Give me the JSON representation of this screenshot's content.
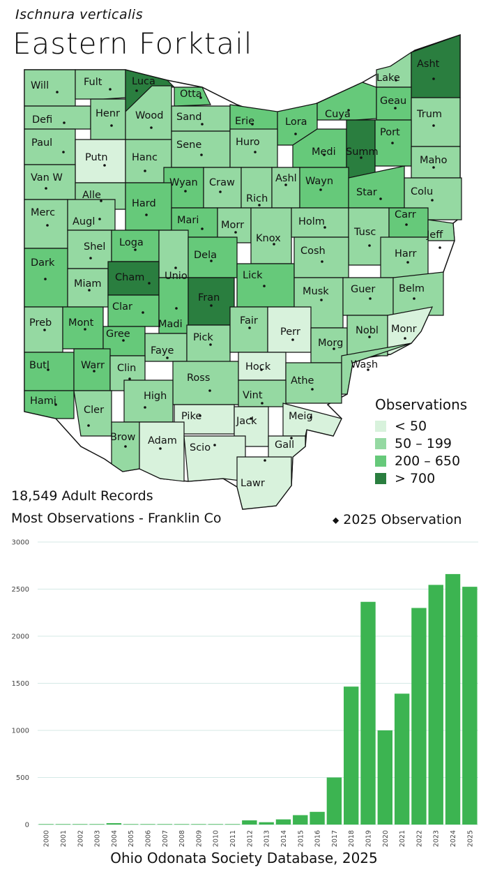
{
  "header": {
    "scientific_name": "Ischnura verticalis",
    "common_name": "Eastern Forktail"
  },
  "colors": {
    "lt50": "#d8f2dc",
    "c50_199": "#95d9a2",
    "c200_650": "#66c97a",
    "gt700": "#2a7e3f",
    "bar": "#3cb451",
    "grid": "#d4e9e6"
  },
  "map": {
    "counties": [
      {
        "label": "Will",
        "cls": "c50_199"
      },
      {
        "label": "Fult",
        "cls": "c50_199"
      },
      {
        "label": "Luca",
        "cls": "gt700"
      },
      {
        "label": "Otta",
        "cls": "c200_650"
      },
      {
        "label": "Lake",
        "cls": "c50_199"
      },
      {
        "label": "Asht",
        "cls": "gt700"
      },
      {
        "label": "Defi",
        "cls": "c50_199"
      },
      {
        "label": "Henr",
        "cls": "c50_199"
      },
      {
        "label": "Wood",
        "cls": "c50_199"
      },
      {
        "label": "Sand",
        "cls": "c50_199"
      },
      {
        "label": "Erie",
        "cls": "c200_650"
      },
      {
        "label": "Lora",
        "cls": "c200_650"
      },
      {
        "label": "Cuya",
        "cls": "c200_650"
      },
      {
        "label": "Geau",
        "cls": "c200_650"
      },
      {
        "label": "Trum",
        "cls": "c50_199"
      },
      {
        "label": "Paul",
        "cls": "c50_199"
      },
      {
        "label": "Putn",
        "cls": "lt50"
      },
      {
        "label": "Hanc",
        "cls": "c50_199"
      },
      {
        "label": "Sene",
        "cls": "c50_199"
      },
      {
        "label": "Huro",
        "cls": "c50_199"
      },
      {
        "label": "Medi",
        "cls": "c200_650"
      },
      {
        "label": "Summ",
        "cls": "gt700"
      },
      {
        "label": "Port",
        "cls": "c200_650"
      },
      {
        "label": "Maho",
        "cls": "c50_199"
      },
      {
        "label": "Van W",
        "cls": "c50_199"
      },
      {
        "label": "Alle",
        "cls": "c50_199"
      },
      {
        "label": "Wyan",
        "cls": "c200_650"
      },
      {
        "label": "Craw",
        "cls": "c50_199"
      },
      {
        "label": "Rich",
        "cls": "c50_199"
      },
      {
        "label": "Ashl",
        "cls": "c50_199"
      },
      {
        "label": "Wayn",
        "cls": "c200_650"
      },
      {
        "label": "Star",
        "cls": "c200_650"
      },
      {
        "label": "Colu",
        "cls": "c50_199"
      },
      {
        "label": "Merc",
        "cls": "c50_199"
      },
      {
        "label": "Augl",
        "cls": "c50_199"
      },
      {
        "label": "Hard",
        "cls": "c200_650"
      },
      {
        "label": "Mari",
        "cls": "c200_650"
      },
      {
        "label": "Morr",
        "cls": "c50_199"
      },
      {
        "label": "Knox",
        "cls": "c50_199"
      },
      {
        "label": "Holm",
        "cls": "c50_199"
      },
      {
        "label": "Tusc",
        "cls": "c50_199"
      },
      {
        "label": "Carr",
        "cls": "c200_650"
      },
      {
        "label": "Jeff",
        "cls": "c50_199"
      },
      {
        "label": "Shel",
        "cls": "c50_199"
      },
      {
        "label": "Loga",
        "cls": "c200_650"
      },
      {
        "label": "Unio",
        "cls": "c50_199"
      },
      {
        "label": "Dela",
        "cls": "c200_650"
      },
      {
        "label": "Lick",
        "cls": "c200_650"
      },
      {
        "label": "Cosh",
        "cls": "c50_199"
      },
      {
        "label": "Harr",
        "cls": "c50_199"
      },
      {
        "label": "Dark",
        "cls": "c200_650"
      },
      {
        "label": "Miam",
        "cls": "c50_199"
      },
      {
        "label": "Cham",
        "cls": "gt700"
      },
      {
        "label": "Clar",
        "cls": "c200_650"
      },
      {
        "label": "Madi",
        "cls": "c200_650"
      },
      {
        "label": "Fran",
        "cls": "gt700"
      },
      {
        "label": "Musk",
        "cls": "c50_199"
      },
      {
        "label": "Guer",
        "cls": "c50_199"
      },
      {
        "label": "Belm",
        "cls": "c50_199"
      },
      {
        "label": "Preb",
        "cls": "c50_199"
      },
      {
        "label": "Mont",
        "cls": "c200_650"
      },
      {
        "label": "Gree",
        "cls": "c200_650"
      },
      {
        "label": "Faye",
        "cls": "c50_199"
      },
      {
        "label": "Pick",
        "cls": "c50_199"
      },
      {
        "label": "Fair",
        "cls": "c50_199"
      },
      {
        "label": "Perr",
        "cls": "lt50"
      },
      {
        "label": "Morg",
        "cls": "c50_199"
      },
      {
        "label": "Nobl",
        "cls": "c50_199"
      },
      {
        "label": "Monr",
        "cls": "lt50"
      },
      {
        "label": "Butl",
        "cls": "c200_650"
      },
      {
        "label": "Warr",
        "cls": "c200_650"
      },
      {
        "label": "Clin",
        "cls": "c50_199"
      },
      {
        "label": "Ross",
        "cls": "c50_199"
      },
      {
        "label": "Hock",
        "cls": "lt50"
      },
      {
        "label": "Athe",
        "cls": "c50_199"
      },
      {
        "label": "Wash",
        "cls": "c50_199"
      },
      {
        "label": "Hami",
        "cls": "c200_650"
      },
      {
        "label": "Cler",
        "cls": "c50_199"
      },
      {
        "label": "High",
        "cls": "c50_199"
      },
      {
        "label": "Vint",
        "cls": "c50_199"
      },
      {
        "label": "Brow",
        "cls": "c50_199"
      },
      {
        "label": "Pike",
        "cls": "lt50"
      },
      {
        "label": "Jack",
        "cls": "lt50"
      },
      {
        "label": "Meig",
        "cls": "lt50"
      },
      {
        "label": "Adam",
        "cls": "lt50"
      },
      {
        "label": "Scio",
        "cls": "lt50"
      },
      {
        "label": "Gall",
        "cls": "lt50"
      },
      {
        "label": "Lawr",
        "cls": "lt50"
      }
    ]
  },
  "legend": {
    "title": "Observations",
    "items": [
      {
        "label": "< 50",
        "cls": "lt50"
      },
      {
        "label": "50 – 199",
        "cls": "c50_199"
      },
      {
        "label": "200 – 650",
        "cls": "c200_650"
      },
      {
        "label": "> 700",
        "cls": "gt700"
      }
    ],
    "marker_label": "2025  Observation"
  },
  "stats": {
    "adult_records": "18,549 Adult Records",
    "most_observations": "Most Observations - Franklin Co"
  },
  "chart_data": {
    "type": "bar",
    "categories": [
      "2000",
      "2001",
      "2002",
      "2003",
      "2004",
      "2005",
      "2006",
      "2007",
      "2008",
      "2009",
      "2010",
      "2011",
      "2012",
      "2013",
      "2014",
      "2015",
      "2016",
      "2017",
      "2018",
      "2019",
      "2020",
      "2021",
      "2022",
      "2023",
      "2024",
      "2025"
    ],
    "values": [
      5,
      5,
      5,
      5,
      15,
      5,
      5,
      5,
      5,
      5,
      5,
      5,
      45,
      25,
      55,
      100,
      135,
      500,
      1465,
      2365,
      1000,
      1390,
      2300,
      2545,
      2660,
      2525
    ],
    "yticks": [
      0,
      500,
      1000,
      1500,
      2000,
      2500,
      3000
    ],
    "ylim": [
      0,
      3000
    ],
    "title": "",
    "xlabel": "",
    "ylabel": "",
    "grid": true
  },
  "footer": {
    "source": "Ohio Odonata Society Database, 2025"
  }
}
